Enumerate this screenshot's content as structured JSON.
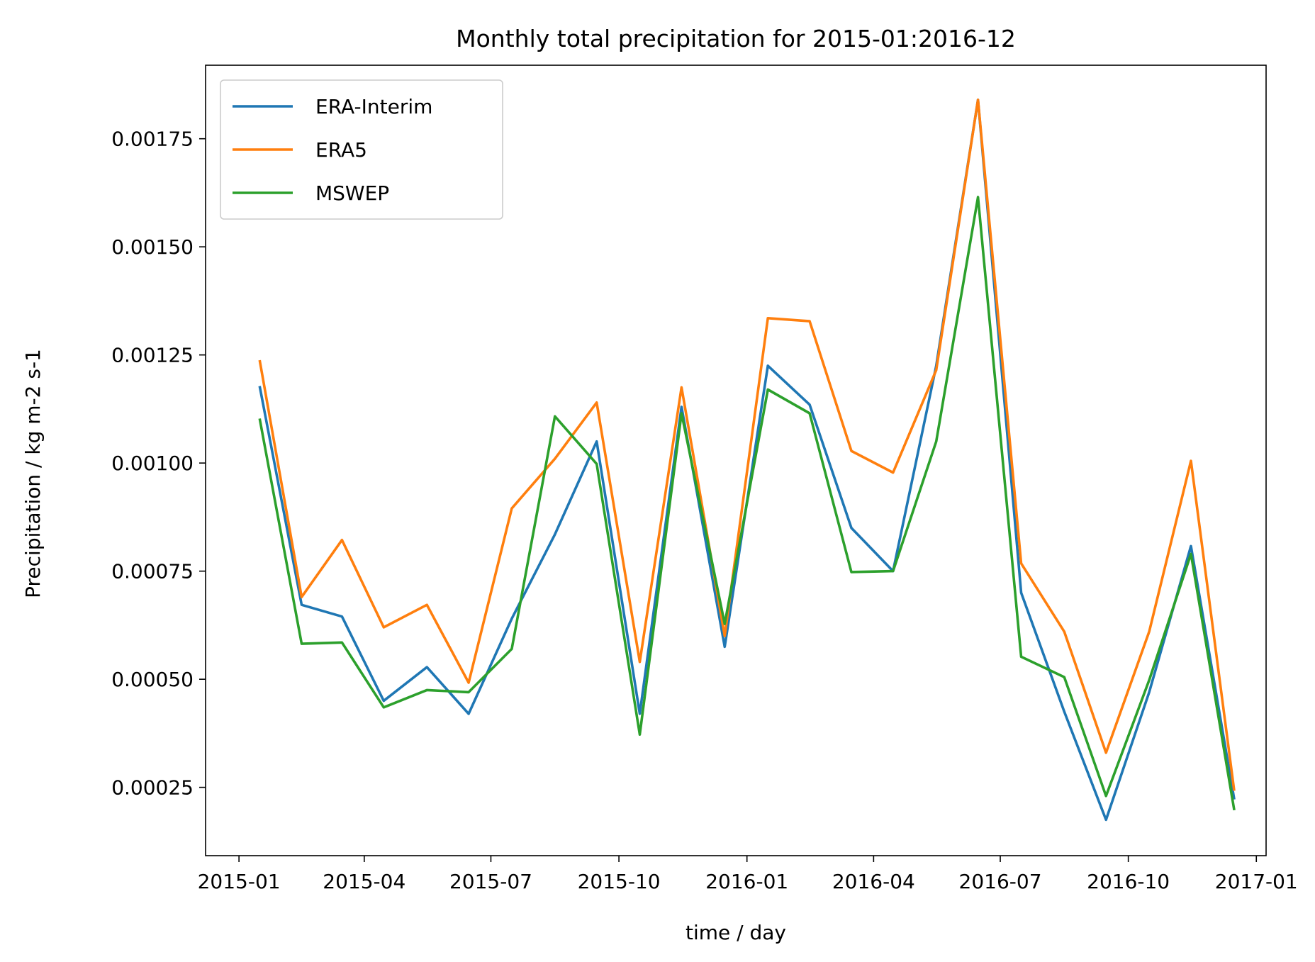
{
  "chart_data": {
    "type": "line",
    "title": "Monthly total precipitation for 2015-01:2016-12",
    "xlabel": "time / day",
    "ylabel": "Precipitation / kg m-2 s-1",
    "x": [
      "2015-01-16",
      "2015-02-15",
      "2015-03-16",
      "2015-04-15",
      "2015-05-16",
      "2015-06-15",
      "2015-07-16",
      "2015-08-16",
      "2015-09-15",
      "2015-10-16",
      "2015-11-15",
      "2015-12-16",
      "2016-01-16",
      "2016-02-15",
      "2016-03-16",
      "2016-04-15",
      "2016-05-16",
      "2016-06-15",
      "2016-07-16",
      "2016-08-16",
      "2016-09-15",
      "2016-10-16",
      "2016-11-15",
      "2016-12-16"
    ],
    "x_ticks": [
      "2015-01",
      "2015-04",
      "2015-07",
      "2015-10",
      "2016-01",
      "2016-04",
      "2016-07",
      "2016-10",
      "2017-01"
    ],
    "y_ticks": [
      0.00025,
      0.0005,
      0.00075,
      0.001,
      0.00125,
      0.0015,
      0.00175
    ],
    "y_tick_labels": [
      "0.00025",
      "0.00050",
      "0.00075",
      "0.00100",
      "0.00125",
      "0.00150",
      "0.00175"
    ],
    "xlim": [
      "2014-12-08",
      "2017-01-08"
    ],
    "ylim": [
      9.2e-05,
      0.00192
    ],
    "grid": false,
    "legend_position": "top-left",
    "series": [
      {
        "name": "ERA-Interim",
        "color": "#1f77b4",
        "values": [
          0.001175,
          0.000672,
          0.000645,
          0.00045,
          0.000528,
          0.00042,
          0.00064,
          0.000835,
          0.00105,
          0.00042,
          0.00113,
          0.000575,
          0.001225,
          0.001135,
          0.00085,
          0.00075,
          0.001225,
          0.00184,
          0.0007,
          0.000425,
          0.000175,
          0.00047,
          0.000808,
          0.000225
        ]
      },
      {
        "name": "ERA5",
        "color": "#ff7f0e",
        "values": [
          0.001235,
          0.00069,
          0.000822,
          0.00062,
          0.000672,
          0.000492,
          0.000895,
          0.00101,
          0.00114,
          0.00054,
          0.001175,
          0.0006,
          0.001335,
          0.001328,
          0.001028,
          0.000978,
          0.001215,
          0.00184,
          0.000768,
          0.00061,
          0.00033,
          0.00061,
          0.001005,
          0.000245
        ]
      },
      {
        "name": "MSWEP",
        "color": "#2ca02c",
        "values": [
          0.0011,
          0.000582,
          0.000585,
          0.000435,
          0.000475,
          0.00047,
          0.00057,
          0.001108,
          0.000998,
          0.000372,
          0.001115,
          0.000628,
          0.00117,
          0.001115,
          0.000748,
          0.00075,
          0.00105,
          0.001615,
          0.000552,
          0.000505,
          0.00023,
          0.000498,
          0.00079,
          0.0002
        ]
      }
    ]
  }
}
